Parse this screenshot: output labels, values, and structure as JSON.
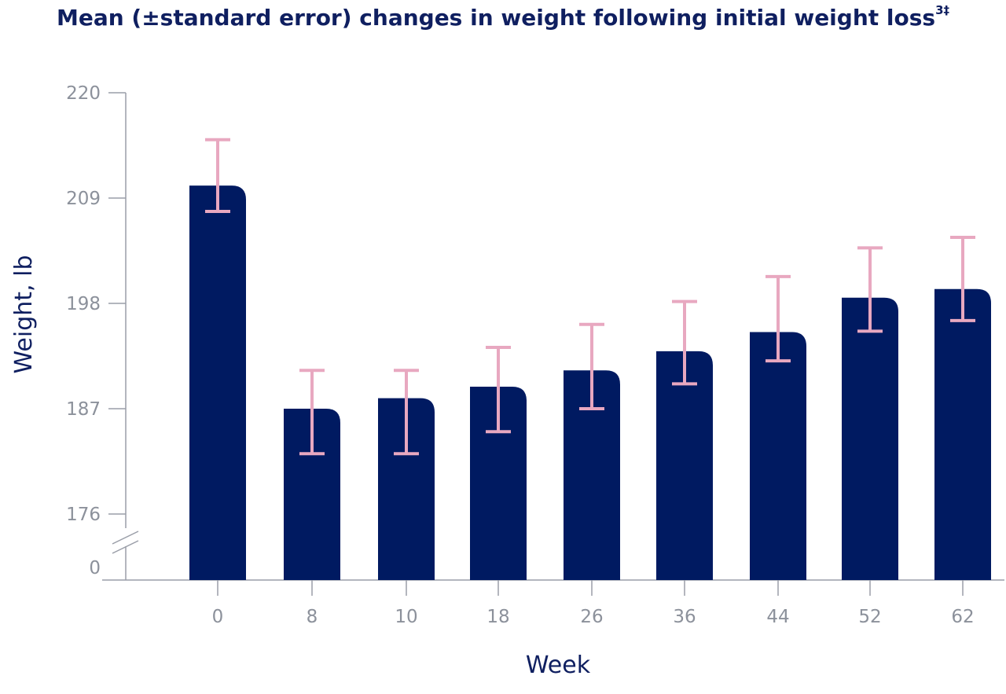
{
  "chart_data": {
    "type": "bar",
    "title": "Mean (±standard error) changes in weight following initial weight loss",
    "title_superscript": "3‡",
    "xlabel": "Week",
    "ylabel": "Weight, lb",
    "categories": [
      "0",
      "8",
      "10",
      "18",
      "26",
      "36",
      "44",
      "52",
      "62"
    ],
    "series": [
      {
        "values": [
          210.3,
          187.0,
          188.1,
          189.3,
          191.0,
          193.0,
          195.0,
          198.6,
          199.5
        ],
        "error_low": [
          207.6,
          182.3,
          182.3,
          184.6,
          187.0,
          189.6,
          192.0,
          195.1,
          196.2
        ],
        "error_high": [
          215.1,
          191.0,
          191.0,
          193.4,
          195.8,
          198.2,
          200.8,
          203.8,
          204.9
        ]
      }
    ],
    "yticks": [
      "220",
      "209",
      "198",
      "187",
      "176",
      "0"
    ],
    "ylim": [
      176,
      220
    ],
    "axis_break": "between 0 and 176",
    "grid": false,
    "colors": {
      "bar": "#001a61",
      "error_bar": "#e8a8c0",
      "axis": "#9a9ea8",
      "text": "#0f1f60"
    }
  }
}
